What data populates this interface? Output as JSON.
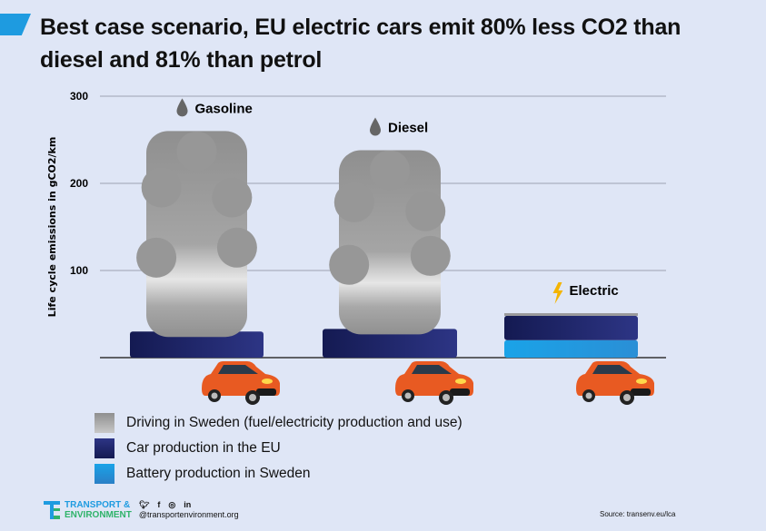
{
  "title": "Best case scenario, EU electric cars emit 80% less CO2 than diesel and 81% than petrol",
  "colors": {
    "background": "#dfe6f6",
    "accent": "#1e9be0",
    "driving": "#9a9a9a",
    "car_production": "#1b2160",
    "battery": "#1e9be0",
    "car": "#e85a22"
  },
  "chart_data": {
    "type": "bar",
    "stacked": true,
    "title": "Best case scenario, EU electric cars emit 80% less CO2 than diesel and 81% than petrol",
    "ylabel": "Life cycle emissions in gCO2/km",
    "ylim": [
      0,
      300
    ],
    "yticks": [
      "100",
      "200",
      "300"
    ],
    "grid": true,
    "legend_placement": "bottom-left",
    "categories": [
      "Gasoline",
      "Diesel",
      "Electric"
    ],
    "category_icons": [
      "fuel-drop-icon",
      "fuel-drop-icon",
      "lightning-icon"
    ],
    "series": [
      {
        "name": "Battery production in Sweden",
        "values": [
          0,
          0,
          20
        ]
      },
      {
        "name": "Car production in the EU",
        "values": [
          30,
          33,
          28
        ]
      },
      {
        "name": "Driving in Sweden (fuel/electricity production and use)",
        "values": [
          230,
          205,
          3
        ]
      }
    ]
  },
  "legend": [
    {
      "label": "Driving in Sweden (fuel/electricity production and use)"
    },
    {
      "label": "Car production in the EU"
    },
    {
      "label": "Battery production in Sweden"
    }
  ],
  "footer": {
    "logo_line1": "TRANSPORT &",
    "logo_line2": "ENVIRONMENT",
    "social_icons": [
      "twitter-icon",
      "facebook-icon",
      "instagram-icon",
      "linkedin-icon"
    ],
    "handle": "@transportenvironment.org",
    "source": "Source: transenv.eu/lca"
  }
}
